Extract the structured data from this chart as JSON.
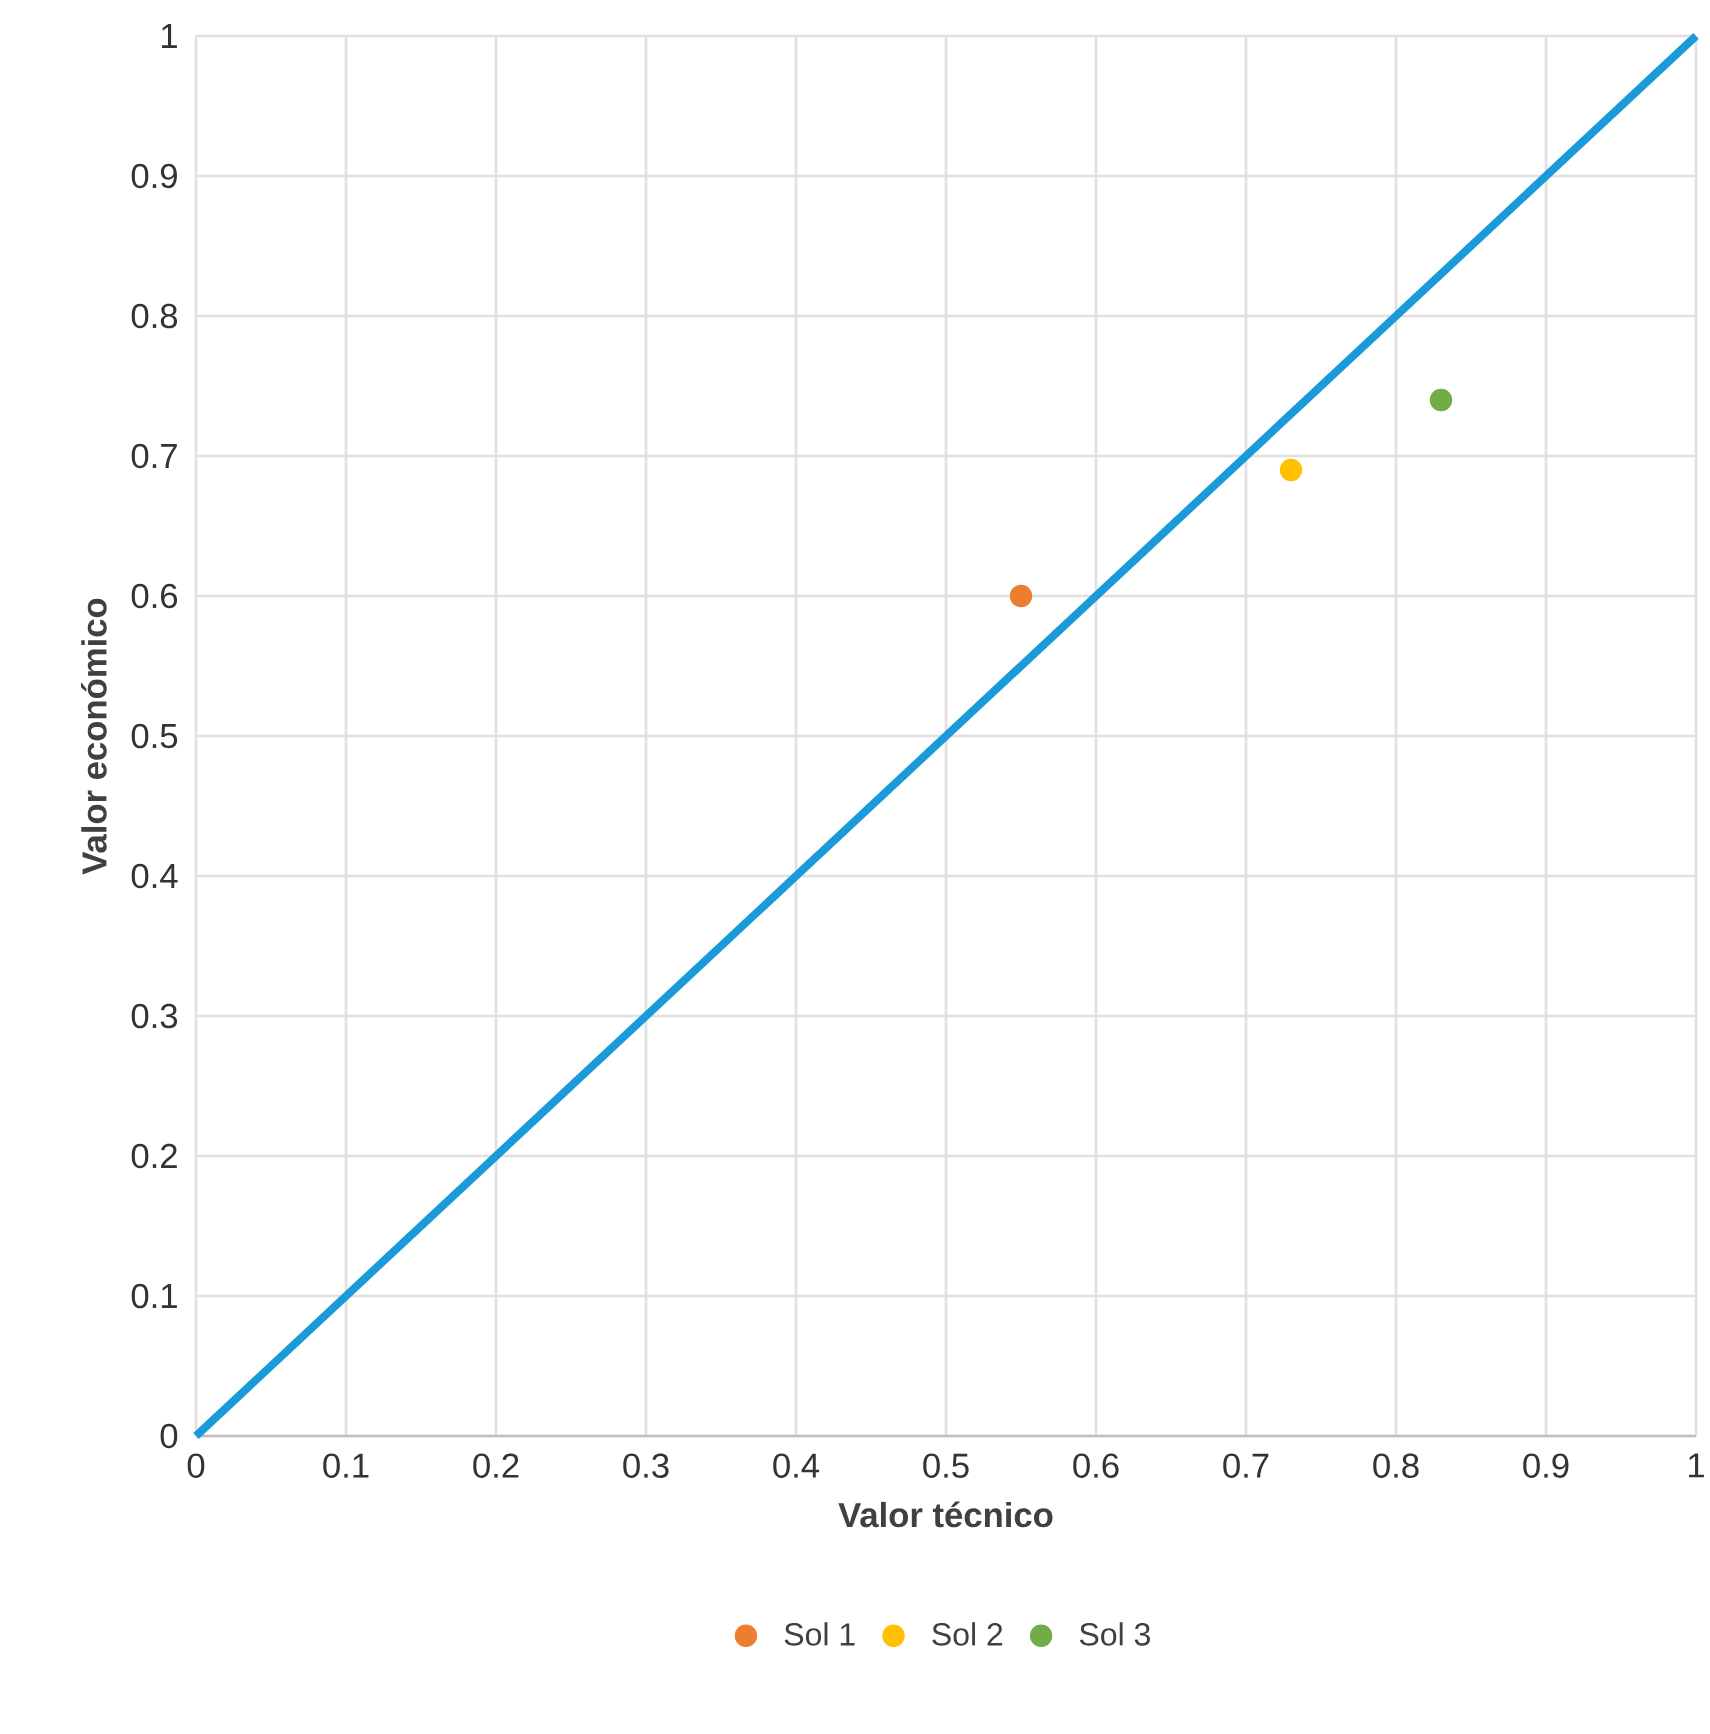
{
  "chart_data": {
    "type": "scatter",
    "xlabel": "Valor técnico",
    "ylabel": "Valor económico",
    "xlim": [
      0,
      1
    ],
    "ylim": [
      0,
      1
    ],
    "xticks": [
      0,
      0.1,
      0.2,
      0.3,
      0.4,
      0.5,
      0.6,
      0.7,
      0.8,
      0.9,
      1
    ],
    "yticks": [
      0,
      0.1,
      0.2,
      0.3,
      0.4,
      0.5,
      0.6,
      0.7,
      0.8,
      0.9,
      1
    ],
    "grid": true,
    "legend": "bottom",
    "series": [
      {
        "type": "line",
        "marker": "none",
        "color": "#1a9ad9",
        "x": [
          0,
          1
        ],
        "values": [
          0,
          1
        ]
      },
      {
        "name": "Sol 1",
        "marker": "circle",
        "color": "#ed7d31",
        "x": [
          0.55
        ],
        "values": [
          0.6
        ]
      },
      {
        "name": "Sol 2",
        "marker": "circle",
        "color": "#ffc000",
        "x": [
          0.73
        ],
        "values": [
          0.69
        ]
      },
      {
        "name": "Sol 3",
        "marker": "circle",
        "color": "#70ad47",
        "x": [
          0.83
        ],
        "values": [
          0.74
        ]
      }
    ]
  }
}
